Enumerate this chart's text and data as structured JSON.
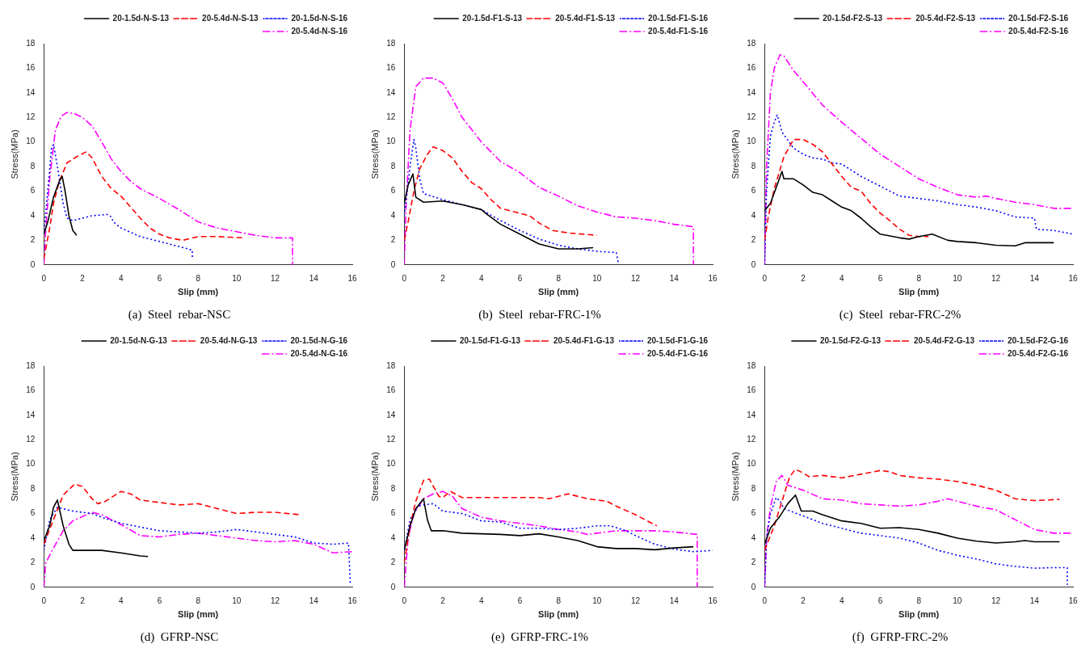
{
  "chart_data": [
    {
      "type": "line",
      "title": "(a)  Steel  rebar-NSC",
      "xlabel": "Slip (mm)",
      "ylabel": "Stress(MPa)",
      "xlim": [
        0,
        16
      ],
      "xticks": [
        0,
        2,
        4,
        6,
        8,
        10,
        12,
        14,
        16
      ],
      "ylim": [
        0,
        18
      ],
      "yticks": [
        0,
        2,
        4,
        6,
        8,
        10,
        12,
        14,
        16,
        18
      ],
      "legend": "top right",
      "marker": "none",
      "series": [
        {
          "name": "20-1.5d-N-S-13",
          "color": "#000000",
          "line_style": "solid",
          "x": [
            0,
            0.2,
            0.5,
            0.8,
            0.95,
            1.1,
            1.3,
            1.5,
            1.7
          ],
          "values": [
            2.5,
            3.5,
            5.5,
            6.8,
            7.2,
            6,
            4,
            2.8,
            2.4
          ]
        },
        {
          "name": "20-5.4d-N-S-13",
          "color": "#ff0000",
          "line_style": "dashed",
          "x": [
            0,
            0.3,
            0.5,
            0.8,
            1.2,
            1.7,
            2.2,
            2.5,
            3,
            3.5,
            4,
            4.5,
            5,
            5.5,
            6,
            6.5,
            7.2,
            8,
            9,
            10.3
          ],
          "values": [
            0.5,
            3,
            5,
            6.8,
            8.3,
            8.8,
            9.2,
            8.7,
            7.2,
            6.2,
            5.6,
            4.7,
            3.8,
            3.0,
            2.5,
            2.2,
            2.0,
            2.3,
            2.3,
            2.2
          ]
        },
        {
          "name": "20-1.5d-N-S-16",
          "color": "#0000ff",
          "line_style": "dotted",
          "x": [
            0,
            0.2,
            0.4,
            0.5,
            0.7,
            1,
            1.2,
            1.5,
            2,
            2.5,
            3.3,
            3.5,
            3.6,
            4,
            5,
            6,
            7,
            7.7,
            7.7
          ],
          "values": [
            2.5,
            6,
            9.5,
            9.8,
            8,
            5,
            3.8,
            3.6,
            3.8,
            4,
            4.1,
            3.9,
            3.5,
            3.0,
            2.3,
            1.9,
            1.5,
            1.2,
            0.5
          ]
        },
        {
          "name": "20-5.4d-N-S-16",
          "color": "#ff00ff",
          "line_style": "dashdot",
          "x": [
            0,
            0.1,
            0.3,
            0.6,
            0.9,
            1.2,
            1.6,
            2,
            2.5,
            3,
            3.5,
            4,
            4.5,
            5,
            6,
            7,
            8,
            9,
            10,
            11,
            12,
            12.9,
            12.9
          ],
          "values": [
            0,
            3,
            7,
            11,
            12.1,
            12.4,
            12.3,
            12.0,
            11.3,
            10,
            8.6,
            7.6,
            6.8,
            6.2,
            5.4,
            4.5,
            3.5,
            3.0,
            2.7,
            2.4,
            2.2,
            2.2,
            0
          ]
        }
      ]
    },
    {
      "type": "line",
      "title": "(b)  Steel  rebar-FRC-1%",
      "xlabel": "Slip (mm)",
      "ylabel": "Stress(MPa)",
      "xlim": [
        0,
        16
      ],
      "xticks": [
        0,
        2,
        4,
        6,
        8,
        10,
        12,
        14,
        16
      ],
      "ylim": [
        0,
        18
      ],
      "yticks": [
        0,
        2,
        4,
        6,
        8,
        10,
        12,
        14,
        16,
        18
      ],
      "legend": "top right",
      "marker": "none",
      "series": [
        {
          "name": "20-1.5d-F1-S-13",
          "color": "#000000",
          "line_style": "solid",
          "x": [
            0,
            0.2,
            0.45,
            0.6,
            1,
            2,
            3,
            4,
            4.3,
            5,
            6,
            7,
            8,
            9,
            9.8
          ],
          "values": [
            5,
            6.5,
            7.4,
            5.5,
            5.1,
            5.2,
            4.9,
            4.5,
            4.1,
            3.3,
            2.5,
            1.7,
            1.3,
            1.3,
            1.4
          ]
        },
        {
          "name": "20-5.4d-F1-S-13",
          "color": "#ff0000",
          "line_style": "dashed",
          "x": [
            0,
            0.2,
            0.5,
            0.8,
            1.2,
            1.5,
            2,
            2.5,
            3,
            3.5,
            4,
            4.5,
            5,
            6,
            6.5,
            7,
            7.7,
            8.5,
            10
          ],
          "values": [
            2,
            3.5,
            6,
            7.8,
            9.0,
            9.6,
            9.3,
            8.7,
            7.6,
            6.7,
            6.2,
            5.3,
            4.6,
            4.2,
            4.0,
            3.4,
            2.8,
            2.6,
            2.4
          ]
        },
        {
          "name": "20-1.5d-F1-S-16",
          "color": "#0000ff",
          "line_style": "dotted",
          "x": [
            0,
            0.3,
            0.5,
            0.6,
            0.8,
            1,
            2,
            3,
            4,
            5,
            6,
            7,
            8,
            9,
            10,
            11,
            11.1
          ],
          "values": [
            4,
            8,
            10.2,
            9.5,
            7,
            5.8,
            5.3,
            4.9,
            4.5,
            3.6,
            2.8,
            2.1,
            1.6,
            1.3,
            1.1,
            1.0,
            0.2
          ]
        },
        {
          "name": "20-5.4d-F1-S-16",
          "color": "#ff00ff",
          "line_style": "dashdot",
          "x": [
            0,
            0.1,
            0.3,
            0.6,
            1,
            1.5,
            2,
            2.5,
            3,
            4,
            5,
            6,
            7,
            8,
            9,
            10,
            11,
            12,
            13,
            14,
            15,
            15
          ],
          "values": [
            0,
            5,
            11,
            14.5,
            15.2,
            15.2,
            14.8,
            13.5,
            12,
            10,
            8.4,
            7.5,
            6.3,
            5.6,
            4.8,
            4.3,
            3.9,
            3.8,
            3.6,
            3.3,
            3.1,
            0
          ]
        }
      ]
    },
    {
      "type": "line",
      "title": "(c)  Steel  rebar-FRC-2%",
      "xlabel": "Slip (mm)",
      "ylabel": "Stress(MPa)",
      "xlim": [
        0,
        16
      ],
      "xticks": [
        0,
        2,
        4,
        6,
        8,
        10,
        12,
        14,
        16
      ],
      "ylim": [
        0,
        18
      ],
      "yticks": [
        0,
        2,
        4,
        6,
        8,
        10,
        12,
        14,
        16,
        18
      ],
      "legend": "top right",
      "marker": "none",
      "series": [
        {
          "name": "20-1.5d-F2-S-13",
          "color": "#000000",
          "line_style": "solid",
          "x": [
            0,
            0.3,
            0.6,
            0.9,
            1.0,
            1.5,
            2,
            2.5,
            3,
            3.5,
            4,
            4.5,
            5,
            5.5,
            6,
            7,
            7.5,
            8,
            8.7,
            9.5,
            10,
            11,
            12,
            13,
            13.5,
            15
          ],
          "values": [
            4.4,
            5,
            6.3,
            7.6,
            7.0,
            7.0,
            6.5,
            5.9,
            5.7,
            5.2,
            4.7,
            4.4,
            3.8,
            3.1,
            2.5,
            2.2,
            2.1,
            2.3,
            2.5,
            2.0,
            1.9,
            1.8,
            1.6,
            1.55,
            1.8,
            1.8
          ]
        },
        {
          "name": "20-5.4d-F2-S-13",
          "color": "#ff0000",
          "line_style": "dashed",
          "x": [
            0,
            0.2,
            0.5,
            1,
            1.5,
            2,
            2.5,
            3,
            3.5,
            4,
            4.5,
            5,
            5.5,
            6,
            6.5,
            7,
            7.5,
            8,
            8.5
          ],
          "values": [
            2,
            4,
            6.2,
            8.8,
            10.2,
            10.2,
            9.8,
            9.2,
            8.2,
            7.2,
            6.3,
            6.0,
            5.0,
            4.2,
            3.6,
            2.9,
            2.4,
            2.3,
            2.3
          ]
        },
        {
          "name": "20-1.5d-F2-S-16",
          "color": "#0000ff",
          "line_style": "dotted",
          "x": [
            0,
            0.1,
            0.3,
            0.5,
            0.65,
            0.8,
            0.9,
            1.5,
            2,
            2.5,
            3,
            3.5,
            4,
            5,
            6,
            7,
            8,
            9,
            10,
            11,
            12,
            13,
            14,
            14.1,
            15,
            16
          ],
          "values": [
            0,
            6,
            10.5,
            11.6,
            12.2,
            11.4,
            10.8,
            9.5,
            9.0,
            8.7,
            8.6,
            8.3,
            8.2,
            7.2,
            6.4,
            5.6,
            5.4,
            5.2,
            4.9,
            4.7,
            4.4,
            3.9,
            3.8,
            2.9,
            2.8,
            2.5
          ]
        },
        {
          "name": "20-5.4d-F2-S-16",
          "color": "#ff00ff",
          "line_style": "dashdot",
          "x": [
            0,
            0.1,
            0.3,
            0.5,
            0.8,
            1,
            1.5,
            2,
            3,
            4,
            5,
            6,
            7,
            8,
            9,
            10,
            11,
            11.5,
            12,
            13,
            14,
            15,
            16
          ],
          "values": [
            0,
            8,
            14,
            16,
            17.1,
            17.0,
            15.8,
            14.9,
            13,
            11.6,
            10.3,
            9.0,
            8.0,
            7.0,
            6.3,
            5.7,
            5.5,
            5.6,
            5.4,
            5.1,
            4.9,
            4.6,
            4.6
          ]
        }
      ]
    },
    {
      "type": "line",
      "title": "(d)  GFRP-NSC",
      "xlabel": "Slip (mm)",
      "ylabel": "Stress(MPa)",
      "xlim": [
        0,
        16
      ],
      "xticks": [
        0,
        2,
        4,
        6,
        8,
        10,
        12,
        14,
        16
      ],
      "ylim": [
        0,
        18
      ],
      "yticks": [
        0,
        2,
        4,
        6,
        8,
        10,
        12,
        14,
        16,
        18
      ],
      "legend": "top right",
      "marker": "none",
      "series": [
        {
          "name": "20-1.5d-N-G-13",
          "color": "#000000",
          "line_style": "solid",
          "x": [
            0,
            0.3,
            0.5,
            0.7,
            1,
            1.3,
            1.5,
            3,
            4,
            5,
            5.4
          ],
          "values": [
            3.8,
            5,
            6.5,
            7.1,
            5,
            3.5,
            3.0,
            3.0,
            2.8,
            2.55,
            2.5
          ]
        },
        {
          "name": "20-5.4d-N-G-13",
          "color": "#ff0000",
          "line_style": "dashed",
          "x": [
            0,
            0.5,
            1,
            1.6,
            2,
            2.5,
            2.8,
            3.2,
            4,
            4.5,
            5,
            6,
            7,
            8,
            9,
            10,
            11,
            12,
            13.3
          ],
          "values": [
            3.5,
            5.5,
            7.5,
            8.4,
            8.2,
            7.2,
            6.8,
            7.0,
            7.8,
            7.6,
            7.1,
            6.9,
            6.7,
            6.8,
            6.4,
            6.0,
            6.1,
            6.1,
            5.9
          ]
        },
        {
          "name": "20-1.5d-N-G-16",
          "color": "#0000ff",
          "line_style": "dotted",
          "x": [
            0,
            0.3,
            0.7,
            1.5,
            2.5,
            3,
            4,
            5,
            6,
            7,
            8,
            9,
            10,
            11,
            12,
            13,
            14,
            15,
            15.8,
            15.9
          ],
          "values": [
            3,
            5.5,
            6.5,
            6.2,
            6.0,
            5.7,
            5.2,
            4.9,
            4.6,
            4.5,
            4.4,
            4.5,
            4.7,
            4.5,
            4.3,
            4.1,
            3.6,
            3.5,
            3.6,
            0.2
          ]
        },
        {
          "name": "20-5.4d-N-G-16",
          "color": "#ff00ff",
          "line_style": "dashdot",
          "x": [
            0,
            0.1,
            0.5,
            1,
            1.5,
            2.5,
            3,
            4,
            5,
            6,
            7,
            8,
            9,
            10,
            11,
            12,
            13,
            14,
            15,
            16
          ],
          "values": [
            0,
            2,
            3.2,
            4.6,
            5.4,
            6.1,
            5.9,
            5.1,
            4.2,
            4.1,
            4.3,
            4.4,
            4.2,
            4.0,
            3.8,
            3.7,
            3.8,
            3.5,
            2.8,
            2.9
          ]
        }
      ]
    },
    {
      "type": "line",
      "title": "(e)  GFRP-FRC-1%",
      "xlabel": "Slip (mm)",
      "ylabel": "Stress(MPa)",
      "xlim": [
        0,
        16
      ],
      "xticks": [
        0,
        2,
        4,
        6,
        8,
        10,
        12,
        14,
        16
      ],
      "ylim": [
        0,
        18
      ],
      "yticks": [
        0,
        2,
        4,
        6,
        8,
        10,
        12,
        14,
        16,
        18
      ],
      "legend": "top right",
      "marker": "none",
      "series": [
        {
          "name": "20-1.5d-F1-G-13",
          "color": "#000000",
          "line_style": "solid",
          "x": [
            0,
            0.3,
            0.6,
            1,
            1.2,
            1.4,
            2,
            3,
            4,
            5,
            6,
            7,
            8,
            9,
            10,
            11,
            12,
            13,
            14,
            15
          ],
          "values": [
            3,
            5,
            6.4,
            7.2,
            5.5,
            4.6,
            4.6,
            4.4,
            4.35,
            4.3,
            4.2,
            4.35,
            4.1,
            3.8,
            3.3,
            3.15,
            3.15,
            3.05,
            3.2,
            3.3
          ]
        },
        {
          "name": "20-5.4d-F1-G-13",
          "color": "#ff0000",
          "line_style": "dashed",
          "x": [
            0,
            0.3,
            0.6,
            1,
            1.3,
            1.8,
            2,
            2.4,
            3,
            4,
            6,
            7,
            7.5,
            8.5,
            9.5,
            10.5,
            11,
            12,
            13.1
          ],
          "values": [
            2,
            5,
            7,
            8.7,
            8.8,
            7.4,
            7.3,
            7.8,
            7.3,
            7.3,
            7.3,
            7.3,
            7.2,
            7.6,
            7.2,
            7.0,
            6.6,
            5.9,
            5.0
          ]
        },
        {
          "name": "20-1.5d-F1-G-16",
          "color": "#0000ff",
          "line_style": "dotted",
          "x": [
            0,
            0.3,
            0.7,
            1,
            1.5,
            2,
            3,
            4,
            5,
            6,
            7,
            8,
            9,
            10,
            10.7,
            11.5,
            12,
            13,
            14,
            15,
            16
          ],
          "values": [
            3,
            5.5,
            6.6,
            6.7,
            6.8,
            6.2,
            6.0,
            5.4,
            5.3,
            4.8,
            4.8,
            4.7,
            4.8,
            5.0,
            5.0,
            4.6,
            4.2,
            3.5,
            3.1,
            2.9,
            3.0
          ]
        },
        {
          "name": "20-5.4d-F1-G-16",
          "color": "#ff00ff",
          "line_style": "dashdot",
          "x": [
            0,
            0.2,
            0.5,
            1,
            1.5,
            2,
            2.5,
            3,
            4,
            5,
            6,
            7,
            8,
            9,
            9.5,
            10,
            11,
            12,
            13,
            14,
            15.2,
            15.2
          ],
          "values": [
            0,
            4,
            6,
            7.2,
            7.6,
            7.8,
            7.4,
            6.4,
            5.7,
            5.4,
            5.2,
            5.0,
            4.7,
            4.5,
            4.3,
            4.4,
            4.6,
            4.6,
            4.6,
            4.5,
            4.3,
            0
          ]
        }
      ]
    },
    {
      "type": "line",
      "title": "(f)  GFRP-FRC-2%",
      "xlabel": "Slip (mm)",
      "ylabel": "Stress(MPa)",
      "xlim": [
        0,
        16
      ],
      "xticks": [
        0,
        2,
        4,
        6,
        8,
        10,
        12,
        14,
        16
      ],
      "ylim": [
        0,
        18
      ],
      "yticks": [
        0,
        2,
        4,
        6,
        8,
        10,
        12,
        14,
        16,
        18
      ],
      "legend": "top right",
      "marker": "none",
      "series": [
        {
          "name": "20-1.5d-F2-G-13",
          "color": "#000000",
          "line_style": "solid",
          "x": [
            0,
            0.3,
            0.8,
            1.2,
            1.6,
            1.9,
            2.5,
            3,
            4,
            5,
            6,
            7,
            8,
            9,
            10,
            11,
            12,
            13,
            13.5,
            14,
            15.3
          ],
          "values": [
            3.5,
            4.8,
            5.8,
            6.8,
            7.5,
            6.2,
            6.2,
            5.9,
            5.4,
            5.2,
            4.8,
            4.85,
            4.7,
            4.4,
            4.0,
            3.75,
            3.6,
            3.7,
            3.8,
            3.7,
            3.7
          ]
        },
        {
          "name": "20-5.4d-F2-G-13",
          "color": "#ff0000",
          "line_style": "dashed",
          "x": [
            0,
            0.5,
            1,
            1.3,
            1.6,
            2,
            2.3,
            3,
            3.5,
            4,
            5,
            6,
            6.5,
            7,
            8,
            9,
            10,
            11,
            12,
            13,
            14,
            15.3
          ],
          "values": [
            3,
            5,
            7.5,
            9.0,
            9.6,
            9.3,
            9.0,
            9.1,
            9.0,
            8.9,
            9.2,
            9.5,
            9.4,
            9.1,
            8.9,
            8.8,
            8.6,
            8.3,
            7.9,
            7.2,
            7.05,
            7.15
          ]
        },
        {
          "name": "20-1.5d-F2-G-16",
          "color": "#0000ff",
          "line_style": "dotted",
          "x": [
            0,
            0.1,
            0.3,
            0.6,
            0.8,
            1,
            2,
            3,
            4,
            5,
            6,
            7,
            8,
            9,
            10,
            11,
            12,
            13,
            14,
            15,
            15.7,
            15.7
          ],
          "values": [
            0,
            4,
            6,
            7.3,
            7.0,
            6.4,
            5.8,
            5.2,
            4.8,
            4.4,
            4.2,
            4.0,
            3.6,
            3.0,
            2.6,
            2.3,
            1.9,
            1.7,
            1.55,
            1.6,
            1.6,
            0.2
          ]
        },
        {
          "name": "20-5.4d-F2-G-16",
          "color": "#ff00ff",
          "line_style": "dashdot",
          "x": [
            0,
            0.1,
            0.3,
            0.6,
            0.9,
            1.2,
            2,
            3,
            4,
            5,
            6,
            7,
            8,
            9,
            9.5,
            10,
            11,
            12,
            13,
            14,
            15,
            16
          ],
          "values": [
            0,
            4,
            6.5,
            8.6,
            9.1,
            8.3,
            7.9,
            7.2,
            7.1,
            6.8,
            6.7,
            6.6,
            6.7,
            7.0,
            7.2,
            7.0,
            6.6,
            6.3,
            5.5,
            4.7,
            4.4,
            4.4
          ]
        }
      ]
    }
  ]
}
